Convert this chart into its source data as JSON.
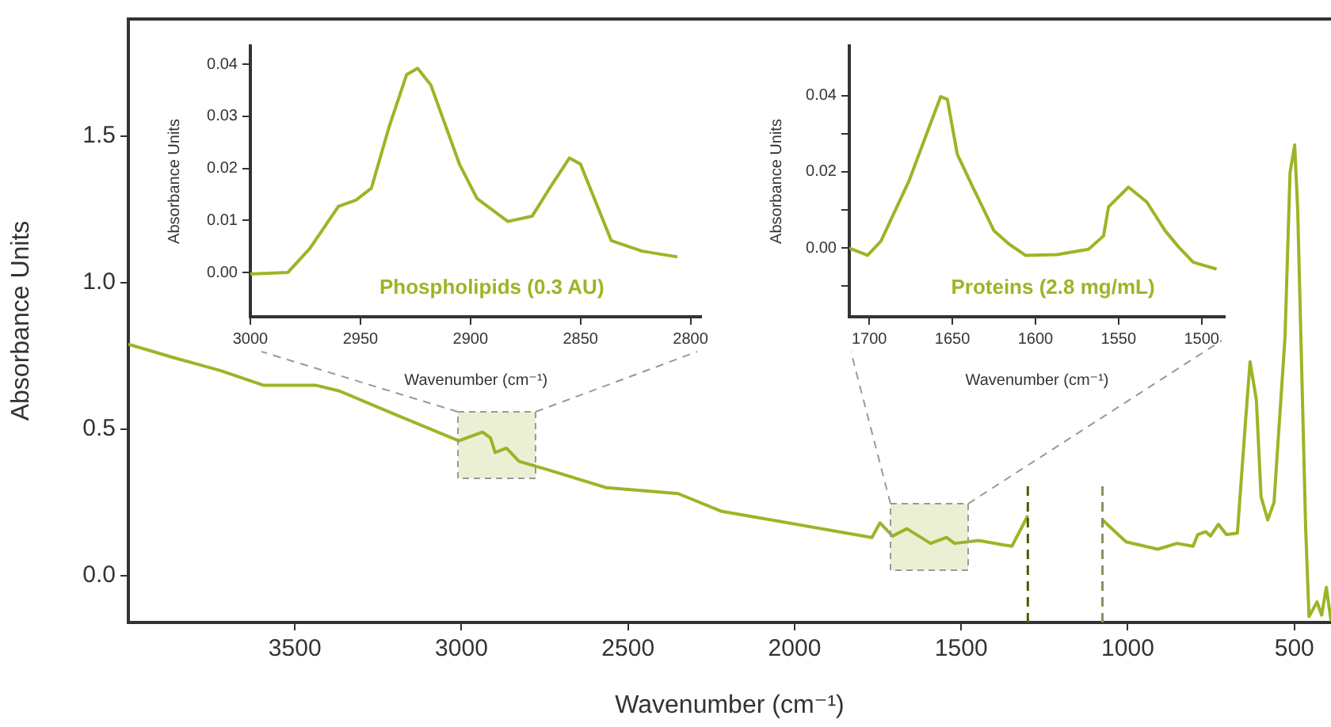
{
  "chart_data": [
    {
      "type": "line",
      "xlabel": "Wavenumber (cm⁻¹)",
      "ylabel": "Absorbance Units",
      "x": [
        4000,
        3867,
        3724,
        3595,
        3438,
        3366,
        3199,
        3008,
        2937,
        2913,
        2899,
        2865,
        2827,
        2737,
        2565,
        2350,
        2221,
        1768,
        1744,
        1706,
        1663,
        1592,
        1544,
        1520,
        1448,
        1348,
        1300,
        1200,
        1076,
        1005,
        910,
        852,
        804,
        790,
        766,
        752,
        728,
        704,
        671,
        647,
        633,
        614,
        600,
        580,
        561,
        528,
        513,
        499,
        490,
        466,
        456,
        432,
        418,
        404,
        390
      ],
      "series": [
        {
          "color": "#9cb526",
          "values": [
            0.79,
            0.745,
            0.7,
            0.65,
            0.65,
            0.63,
            0.55,
            0.46,
            0.49,
            0.47,
            0.42,
            0.435,
            0.39,
            0.36,
            0.3,
            0.28,
            0.22,
            0.13,
            0.18,
            0.135,
            0.16,
            0.11,
            0.13,
            0.11,
            0.12,
            0.1,
            0.205,
            null,
            0.19,
            0.115,
            0.09,
            0.11,
            0.1,
            0.14,
            0.15,
            0.135,
            0.175,
            0.14,
            0.145,
            0.52,
            0.73,
            0.6,
            0.27,
            0.19,
            0.25,
            0.815,
            1.375,
            1.47,
            1.25,
            0.16,
            -0.14,
            -0.09,
            -0.135,
            -0.04,
            -0.155
          ]
        }
      ],
      "xlim": [
        4000,
        390
      ],
      "ylim": [
        -0.16,
        1.9
      ],
      "xticks": [
        3500,
        3000,
        2500,
        2000,
        1500,
        1000,
        500
      ],
      "yticks": [
        {
          "value": 0,
          "label": "0.0"
        },
        0.5,
        {
          "value": 1,
          "label": "1.0"
        },
        1.5
      ],
      "ref_lines": [
        {
          "axis": "x",
          "value": 1300,
          "color": "#4d5a00",
          "line_style": "dashed"
        },
        {
          "axis": "x",
          "value": 1076,
          "color": "#8a8f60",
          "line_style": "dashed"
        }
      ],
      "grid": false,
      "marker": "none"
    },
    {
      "type": "line",
      "xlabel": "Wavenumber (cm⁻¹)",
      "ylabel": "Absorbance Units",
      "x": [
        3000,
        2983,
        2973,
        2960,
        2952,
        2945,
        2937,
        2929,
        2924,
        2918,
        2905,
        2897,
        2883,
        2872,
        2864,
        2855,
        2850,
        2836,
        2822,
        2806
      ],
      "series": [
        {
          "name": "Phospholipids (0.3 AU)",
          "color": "#9cb526",
          "values": [
            -0.0003,
            0.0,
            0.0046,
            0.0127,
            0.0139,
            0.0162,
            0.0279,
            0.038,
            0.0392,
            0.036,
            0.0208,
            0.0142,
            0.0098,
            0.0108,
            0.0162,
            0.022,
            0.0208,
            0.0061,
            0.0041,
            0.003
          ]
        }
      ],
      "xlim": [
        3000,
        2795
      ],
      "ylim": [
        -0.0085,
        0.0435
      ],
      "xticks": [
        3000,
        2950,
        2900,
        2850,
        2800
      ],
      "yticks": [
        {
          "value": 0,
          "label": "0.00"
        },
        0.01,
        0.02,
        0.03,
        0.04
      ],
      "grid": false,
      "marker": "none"
    },
    {
      "type": "line",
      "xlabel": "Wavenumber (cm⁻¹)",
      "ylabel": "Absorbance Units",
      "x": [
        1712,
        1701,
        1693,
        1676,
        1663,
        1657,
        1653,
        1647,
        1638,
        1625,
        1616,
        1606,
        1587,
        1568,
        1559,
        1556,
        1544,
        1533,
        1522,
        1514,
        1505,
        1491
      ],
      "series": [
        {
          "name": "Proteins (2.8 mg/mL)",
          "color": "#9cb526",
          "values": [
            0,
            -0.0019,
            0.0018,
            0.0177,
            0.0328,
            0.0397,
            0.039,
            0.0246,
            0.0163,
            0.0046,
            0.0011,
            -0.0019,
            -0.0017,
            -0.0003,
            0.0032,
            0.0108,
            0.016,
            0.0121,
            0.0046,
            0.0004,
            -0.0037,
            -0.0055
          ]
        }
      ],
      "xlim": [
        1712,
        1486
      ],
      "ylim": [
        -0.018,
        0.053
      ],
      "xticks": [
        1700,
        1650,
        1600,
        1550,
        1500
      ],
      "yticks": [
        {
          "value": -0.01,
          "label": null
        },
        {
          "value": 0,
          "label": "0.00"
        },
        {
          "value": 0.01,
          "label": null
        },
        0.02,
        {
          "value": 0.03,
          "label": null
        },
        0.04
      ],
      "grid": false,
      "marker": "none"
    }
  ]
}
